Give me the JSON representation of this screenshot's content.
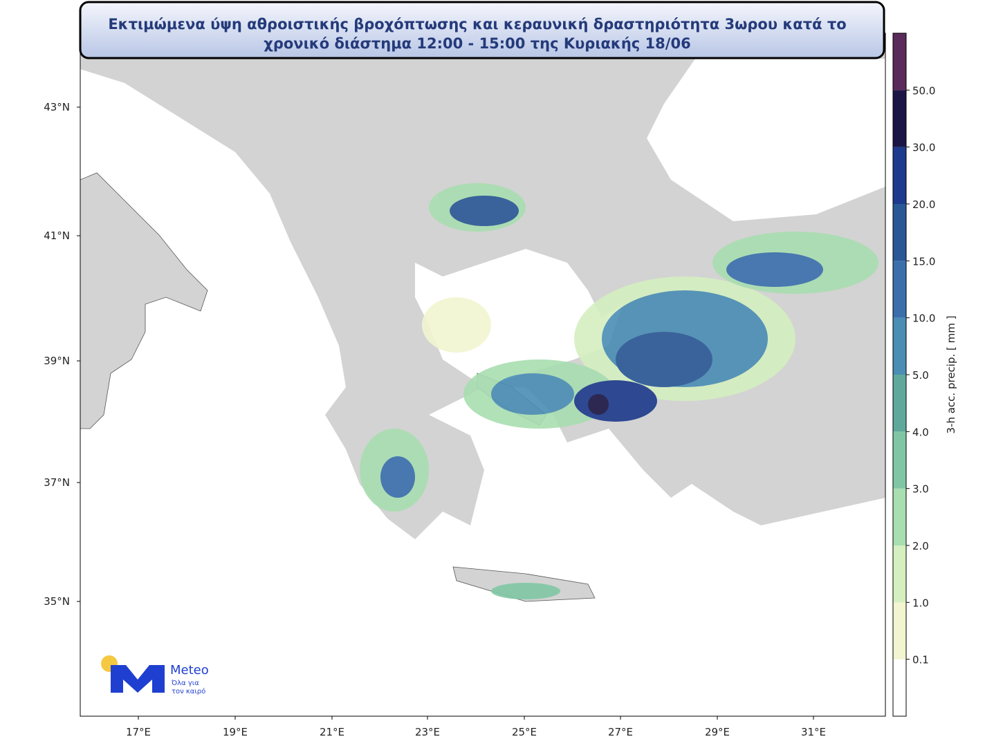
{
  "title": [
    "Εκτιμώμενα ύψη αθροιστικής βροχόπτωσης και κεραυνική δραστηριότητα 3ωρου κατά το",
    "χρονικό διάστημα 12:00 - 15:00 της Κυριακής 18/06"
  ],
  "map": {
    "lon_ticks": [
      "17°E",
      "19°E",
      "21°E",
      "23°E",
      "25°E",
      "27°E",
      "29°E",
      "31°E"
    ],
    "lat_ticks": [
      "43°N",
      "41°N",
      "39°N",
      "37°N",
      "35°N"
    ]
  },
  "colorbar": {
    "label": "3-h acc. precip. [ mm ]",
    "levels": [
      "0.1",
      "1.0",
      "2.0",
      "3.0",
      "4.0",
      "5.0",
      "10.0",
      "15.0",
      "20.0",
      "30.0",
      "50.0"
    ],
    "colors": [
      "#ffffff",
      "#f2f5cf",
      "#d5efc0",
      "#a8deb0",
      "#7fc7a4",
      "#5fa99c",
      "#4a8db5",
      "#3a6fac",
      "#2a5796",
      "#1d3a8c",
      "#1b1645",
      "#5a2a5a"
    ]
  },
  "logo": {
    "name": "Meteo",
    "tagline": [
      "Όλα για",
      "τον καιρό"
    ]
  }
}
